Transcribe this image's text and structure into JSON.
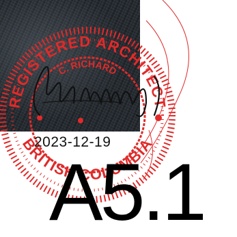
{
  "seal": {
    "top_text": "REGISTERED ARCHITECT",
    "name_text": "C. RICHARD",
    "bottom_text": "BRITISH COLUMBIA",
    "date": "2023-12-19",
    "color": "#e02a2a"
  },
  "sheet": {
    "number": "A5.1"
  }
}
